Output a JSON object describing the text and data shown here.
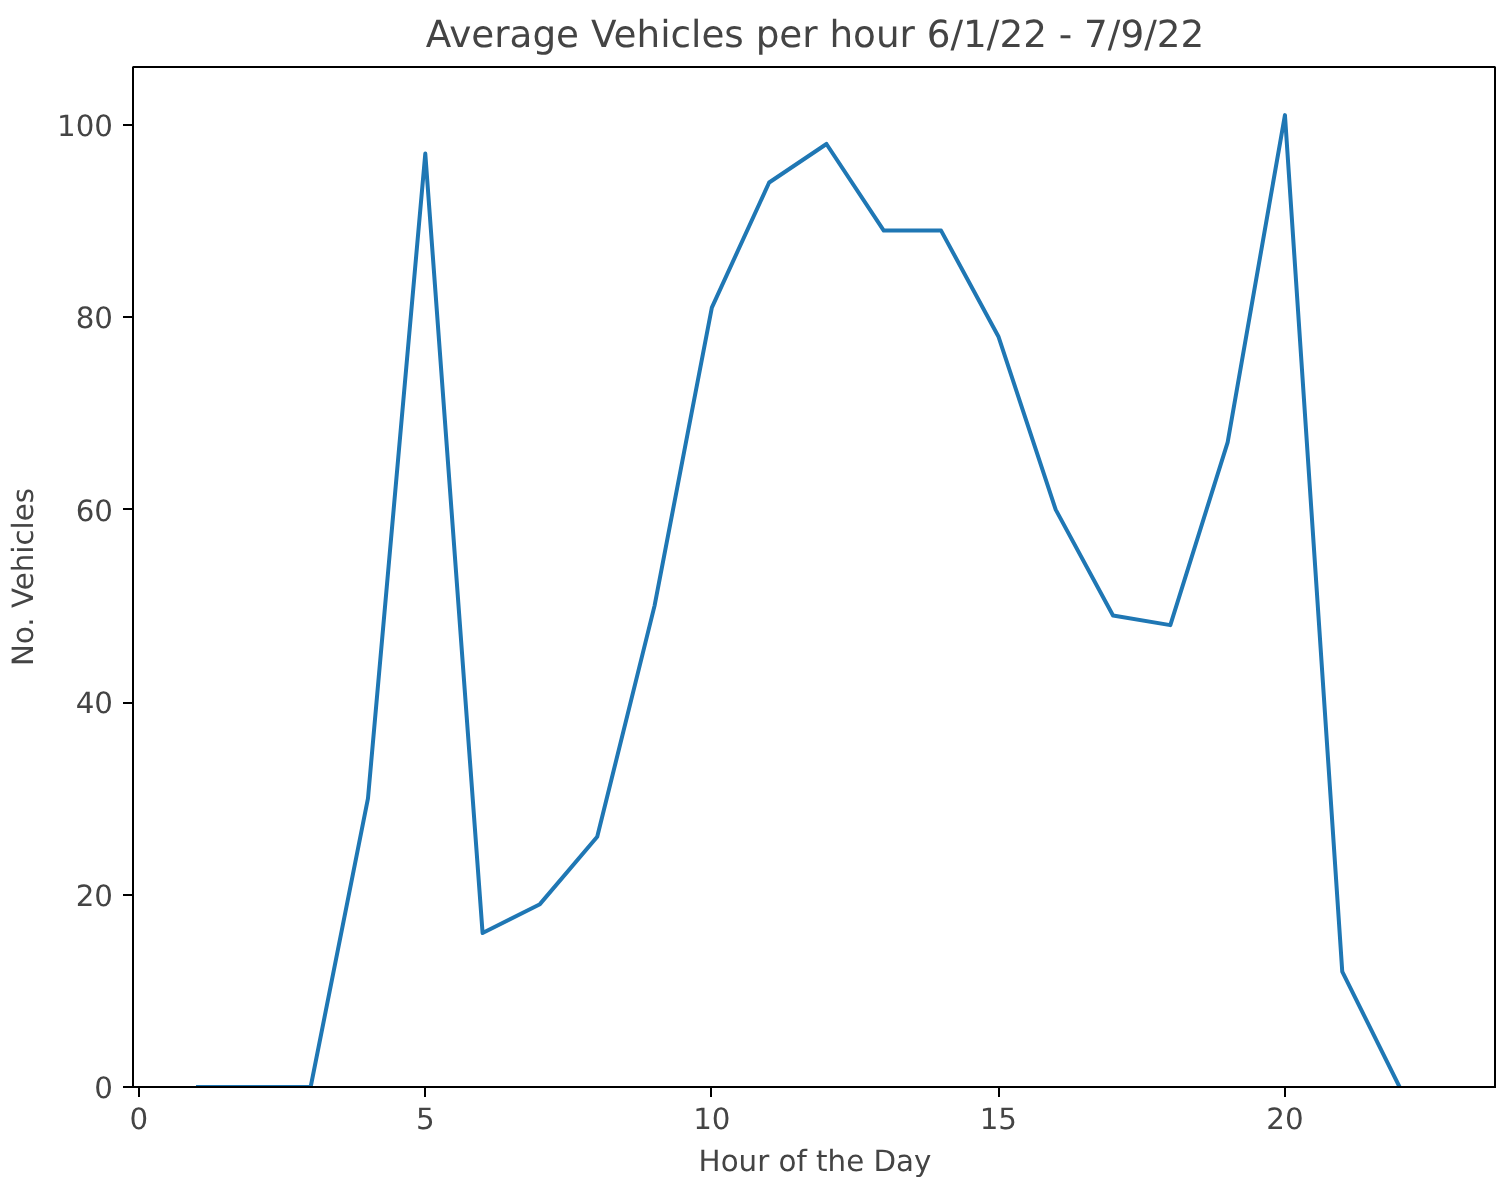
{
  "chart_data": {
    "type": "line",
    "title": "Average Vehicles per hour 6/1/22 - 7/9/22",
    "xlabel": "Hour of the Day",
    "ylabel": "No. Vehicles",
    "x": [
      1,
      2,
      3,
      4,
      5,
      6,
      7,
      8,
      9,
      10,
      11,
      12,
      13,
      14,
      15,
      16,
      17,
      18,
      19,
      20,
      21,
      22
    ],
    "series": [
      {
        "color": "#1f77b4",
        "values": [
          0,
          0,
          0,
          30,
          97,
          16,
          19,
          26,
          50,
          81,
          94,
          98,
          89,
          89,
          78,
          60,
          49,
          48,
          67,
          101,
          12,
          0
        ]
      }
    ],
    "xlim": [
      -0.1,
      23.7
    ],
    "ylim": [
      0,
      106
    ],
    "xticks": [
      0,
      5,
      10,
      15,
      20
    ],
    "yticks": [
      0,
      20,
      40,
      60,
      80,
      100
    ],
    "grid": false,
    "marker": "none",
    "line_style": "solid"
  }
}
